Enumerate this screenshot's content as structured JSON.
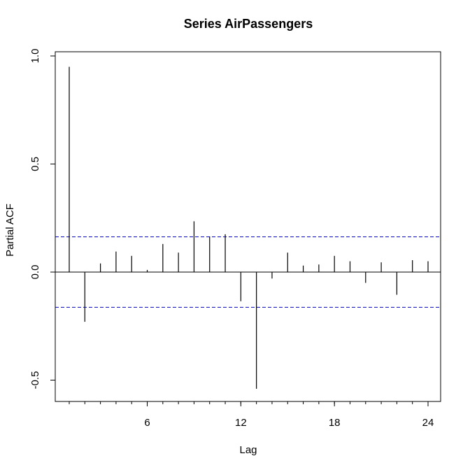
{
  "chart_data": {
    "type": "bar",
    "title": "Series  AirPassengers",
    "xlabel": "Lag",
    "ylabel": "Partial ACF",
    "xlim": [
      0.5,
      24.5
    ],
    "ylim": [
      -0.6,
      1.0
    ],
    "x_ticks": [
      6,
      12,
      18,
      24
    ],
    "y_ticks": [
      -0.5,
      0.0,
      0.5,
      1.0
    ],
    "y_tick_labels": [
      "-0.5",
      "0.0",
      "0.5",
      "1.0"
    ],
    "x_minor_ticks": [
      1,
      2,
      3,
      4,
      5,
      6,
      7,
      8,
      9,
      10,
      11,
      12,
      13,
      14,
      15,
      16,
      17,
      18,
      19,
      20,
      21,
      22,
      23,
      24
    ],
    "confidence_limit": 0.163,
    "confidence_color": "#0000cc",
    "lags": [
      1,
      2,
      3,
      4,
      5,
      6,
      7,
      8,
      9,
      10,
      11,
      12,
      13,
      14,
      15,
      16,
      17,
      18,
      19,
      20,
      21,
      22,
      23,
      24
    ],
    "values": [
      0.95,
      -0.23,
      0.04,
      0.095,
      0.075,
      0.01,
      0.13,
      0.09,
      0.235,
      0.165,
      0.175,
      -0.135,
      -0.54,
      -0.03,
      0.09,
      0.03,
      0.035,
      0.075,
      0.05,
      -0.05,
      0.045,
      -0.105,
      0.055,
      0.05
    ],
    "grid": false,
    "zero_line": true
  }
}
